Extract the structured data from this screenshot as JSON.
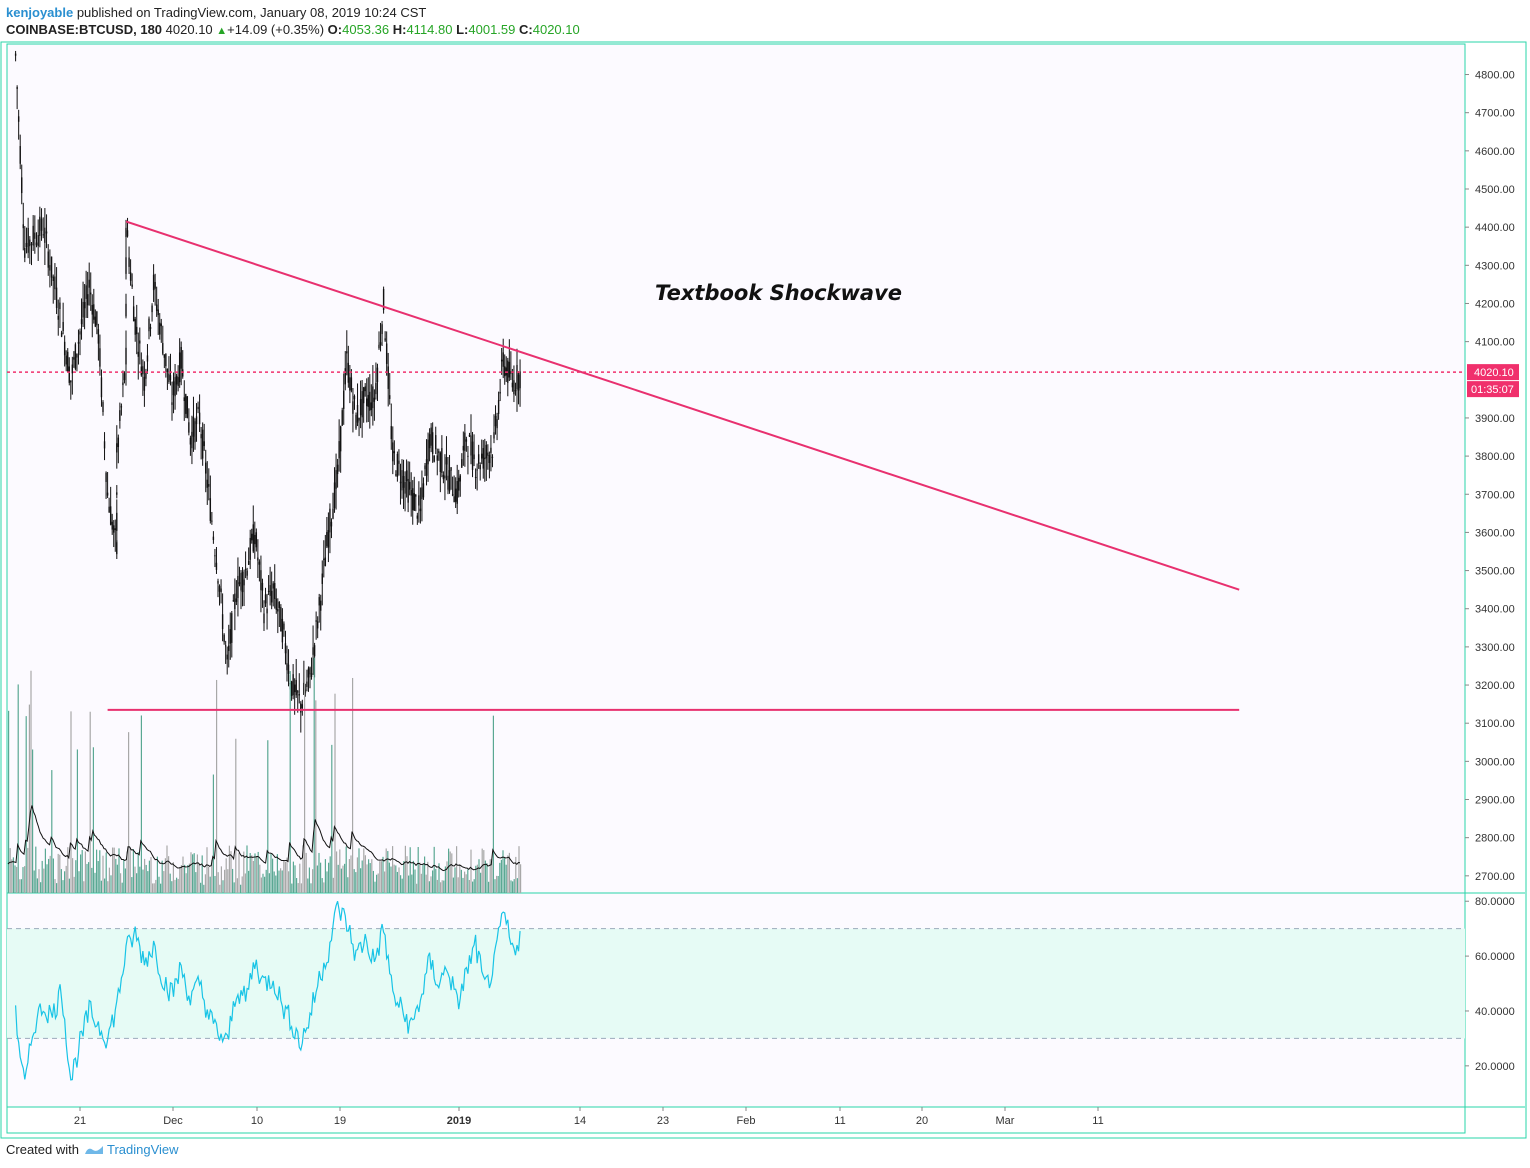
{
  "header": {
    "author": "kenjoyable",
    "published_text": "published on TradingView.com, January 08, 2019 10:24 CST",
    "symbol": "COINBASE:BTCUSD, 180",
    "last": "4020.10",
    "change_arrow": "▲",
    "change": "+14.09 (+0.35%)",
    "o_label": "O:",
    "o_value": "4053.36",
    "h_label": "H:",
    "h_value": "4114.80",
    "l_label": "L:",
    "l_value": "4001.59",
    "c_label": "C:",
    "c_value": "4020.10"
  },
  "footer": {
    "created_with": "Created with",
    "brand": "TradingView"
  },
  "colors": {
    "background": "#fcfaff",
    "border": "#2ad4a8",
    "trendline": "#e8306f",
    "price_line": "#f0306c",
    "candles": "#111111",
    "volume_up": "#5aa893",
    "volume_down": "#a8a8a8",
    "rsi_line": "#18c4e6",
    "rsi_band": "#e6fbf5"
  },
  "chart_data": [
    {
      "type": "candlestick",
      "title": "",
      "y_axis_ticks": [
        "4800.00",
        "4700.00",
        "4600.00",
        "4500.00",
        "4400.00",
        "4300.00",
        "4200.00",
        "4100.00",
        "3900.00",
        "3800.00",
        "3700.00",
        "3600.00",
        "3500.00",
        "3400.00",
        "3300.00",
        "3200.00",
        "3100.00",
        "3000.00",
        "2900.00",
        "2800.00",
        "2700.00"
      ],
      "ylim": [
        2655,
        4880
      ],
      "x_axis_ticks": [
        "21",
        "Dec",
        "10",
        "19",
        "2019",
        "14",
        "23",
        "Feb",
        "11",
        "20",
        "Mar",
        "11"
      ],
      "x_axis_bold": [
        "2019"
      ],
      "last_price": 4020.1,
      "last_price_label": "4020.10",
      "countdown_label": "01:35:07",
      "annotation": "Textbook Shockwave",
      "trendlines": [
        {
          "name": "descending resistance",
          "from": {
            "date": "2018-11-26",
            "price": 4415
          },
          "to": {
            "date": "2019-03-27",
            "price": 3450
          }
        },
        {
          "name": "support",
          "from": {
            "date": "2018-11-24",
            "price": 3135
          },
          "to": {
            "date": "2019-03-27",
            "price": 3135
          }
        }
      ],
      "price_path": [
        {
          "date": "2018-11-14",
          "price": 4850
        },
        {
          "date": "2018-11-15",
          "price": 4350
        },
        {
          "date": "2018-11-17",
          "price": 4400
        },
        {
          "date": "2018-11-19",
          "price": 4150
        },
        {
          "date": "2018-11-20",
          "price": 4000
        },
        {
          "date": "2018-11-22",
          "price": 4250
        },
        {
          "date": "2018-11-23",
          "price": 4120
        },
        {
          "date": "2018-11-24",
          "price": 3700
        },
        {
          "date": "2018-11-25",
          "price": 3550
        },
        {
          "date": "2018-11-25",
          "price": 3800
        },
        {
          "date": "2018-11-26",
          "price": 4050
        },
        {
          "date": "2018-11-26",
          "price": 4410
        },
        {
          "date": "2018-11-27",
          "price": 4150
        },
        {
          "date": "2018-11-28",
          "price": 4000
        },
        {
          "date": "2018-11-29",
          "price": 4250
        },
        {
          "date": "2018-11-30",
          "price": 4100
        },
        {
          "date": "2018-12-01",
          "price": 3950
        },
        {
          "date": "2018-12-02",
          "price": 4050
        },
        {
          "date": "2018-12-03",
          "price": 3850
        },
        {
          "date": "2018-12-04",
          "price": 3900
        },
        {
          "date": "2018-12-05",
          "price": 3700
        },
        {
          "date": "2018-12-06",
          "price": 3500
        },
        {
          "date": "2018-12-07",
          "price": 3250
        },
        {
          "date": "2018-12-08",
          "price": 3450
        },
        {
          "date": "2018-12-09",
          "price": 3500
        },
        {
          "date": "2018-12-10",
          "price": 3600
        },
        {
          "date": "2018-12-11",
          "price": 3400
        },
        {
          "date": "2018-12-12",
          "price": 3450
        },
        {
          "date": "2018-12-13",
          "price": 3350
        },
        {
          "date": "2018-12-14",
          "price": 3200
        },
        {
          "date": "2018-12-15",
          "price": 3150
        },
        {
          "date": "2018-12-16",
          "price": 3220
        },
        {
          "date": "2018-12-17",
          "price": 3400
        },
        {
          "date": "2018-12-18",
          "price": 3600
        },
        {
          "date": "2018-12-19",
          "price": 3750
        },
        {
          "date": "2018-12-20",
          "price": 4050
        },
        {
          "date": "2018-12-21",
          "price": 3900
        },
        {
          "date": "2018-12-22",
          "price": 3950
        },
        {
          "date": "2018-12-23",
          "price": 3950
        },
        {
          "date": "2018-12-24",
          "price": 4200
        },
        {
          "date": "2018-12-25",
          "price": 3800
        },
        {
          "date": "2018-12-26",
          "price": 3750
        },
        {
          "date": "2018-12-27",
          "price": 3700
        },
        {
          "date": "2018-12-28",
          "price": 3650
        },
        {
          "date": "2018-12-29",
          "price": 3850
        },
        {
          "date": "2018-12-30",
          "price": 3800
        },
        {
          "date": "2018-12-31",
          "price": 3750
        },
        {
          "date": "2019-01-01",
          "price": 3700
        },
        {
          "date": "2019-01-02",
          "price": 3850
        },
        {
          "date": "2019-01-03",
          "price": 3780
        },
        {
          "date": "2019-01-04",
          "price": 3800
        },
        {
          "date": "2019-01-05",
          "price": 3830
        },
        {
          "date": "2019-01-06",
          "price": 4050
        },
        {
          "date": "2019-01-07",
          "price": 3990
        },
        {
          "date": "2019-01-08",
          "price": 4020
        }
      ]
    },
    {
      "type": "bar",
      "title": "",
      "series": [
        {
          "name": "",
          "description": "Volume histogram with moving average line, no axis values printed"
        }
      ]
    },
    {
      "type": "line",
      "title": "",
      "y_axis_ticks": [
        "80.0000",
        "60.0000",
        "40.0000",
        "20.0000"
      ],
      "ylim": [
        5,
        83
      ],
      "band": [
        30,
        70
      ],
      "rsi_path": [
        {
          "date": "2018-11-14",
          "value": 38
        },
        {
          "date": "2018-11-15",
          "value": 12
        },
        {
          "date": "2018-11-16",
          "value": 35
        },
        {
          "date": "2018-11-17",
          "value": 42
        },
        {
          "date": "2018-11-18",
          "value": 38
        },
        {
          "date": "2018-11-19",
          "value": 48
        },
        {
          "date": "2018-11-20",
          "value": 15
        },
        {
          "date": "2018-11-21",
          "value": 28
        },
        {
          "date": "2018-11-22",
          "value": 40
        },
        {
          "date": "2018-11-23",
          "value": 35
        },
        {
          "date": "2018-11-24",
          "value": 30
        },
        {
          "date": "2018-11-25",
          "value": 42
        },
        {
          "date": "2018-11-26",
          "value": 62
        },
        {
          "date": "2018-11-27",
          "value": 68
        },
        {
          "date": "2018-11-28",
          "value": 58
        },
        {
          "date": "2018-11-29",
          "value": 64
        },
        {
          "date": "2018-11-30",
          "value": 52
        },
        {
          "date": "2018-12-01",
          "value": 46
        },
        {
          "date": "2018-12-02",
          "value": 56
        },
        {
          "date": "2018-12-03",
          "value": 44
        },
        {
          "date": "2018-12-04",
          "value": 50
        },
        {
          "date": "2018-12-05",
          "value": 38
        },
        {
          "date": "2018-12-06",
          "value": 32
        },
        {
          "date": "2018-12-07",
          "value": 28
        },
        {
          "date": "2018-12-08",
          "value": 48
        },
        {
          "date": "2018-12-09",
          "value": 44
        },
        {
          "date": "2018-12-10",
          "value": 58
        },
        {
          "date": "2018-12-11",
          "value": 50
        },
        {
          "date": "2018-12-12",
          "value": 52
        },
        {
          "date": "2018-12-13",
          "value": 42
        },
        {
          "date": "2018-12-14",
          "value": 36
        },
        {
          "date": "2018-12-15",
          "value": 28
        },
        {
          "date": "2018-12-16",
          "value": 38
        },
        {
          "date": "2018-12-17",
          "value": 52
        },
        {
          "date": "2018-12-18",
          "value": 62
        },
        {
          "date": "2018-12-19",
          "value": 78
        },
        {
          "date": "2018-12-20",
          "value": 72
        },
        {
          "date": "2018-12-21",
          "value": 60
        },
        {
          "date": "2018-12-22",
          "value": 66
        },
        {
          "date": "2018-12-23",
          "value": 58
        },
        {
          "date": "2018-12-24",
          "value": 70
        },
        {
          "date": "2018-12-25",
          "value": 46
        },
        {
          "date": "2018-12-26",
          "value": 40
        },
        {
          "date": "2018-12-27",
          "value": 34
        },
        {
          "date": "2018-12-28",
          "value": 44
        },
        {
          "date": "2018-12-29",
          "value": 58
        },
        {
          "date": "2018-12-30",
          "value": 50
        },
        {
          "date": "2018-12-31",
          "value": 56
        },
        {
          "date": "2019-01-01",
          "value": 42
        },
        {
          "date": "2019-01-02",
          "value": 54
        },
        {
          "date": "2019-01-03",
          "value": 64
        },
        {
          "date": "2019-01-04",
          "value": 48
        },
        {
          "date": "2019-01-05",
          "value": 56
        },
        {
          "date": "2019-01-06",
          "value": 76
        },
        {
          "date": "2019-01-07",
          "value": 62
        },
        {
          "date": "2019-01-08",
          "value": 68
        }
      ]
    }
  ]
}
